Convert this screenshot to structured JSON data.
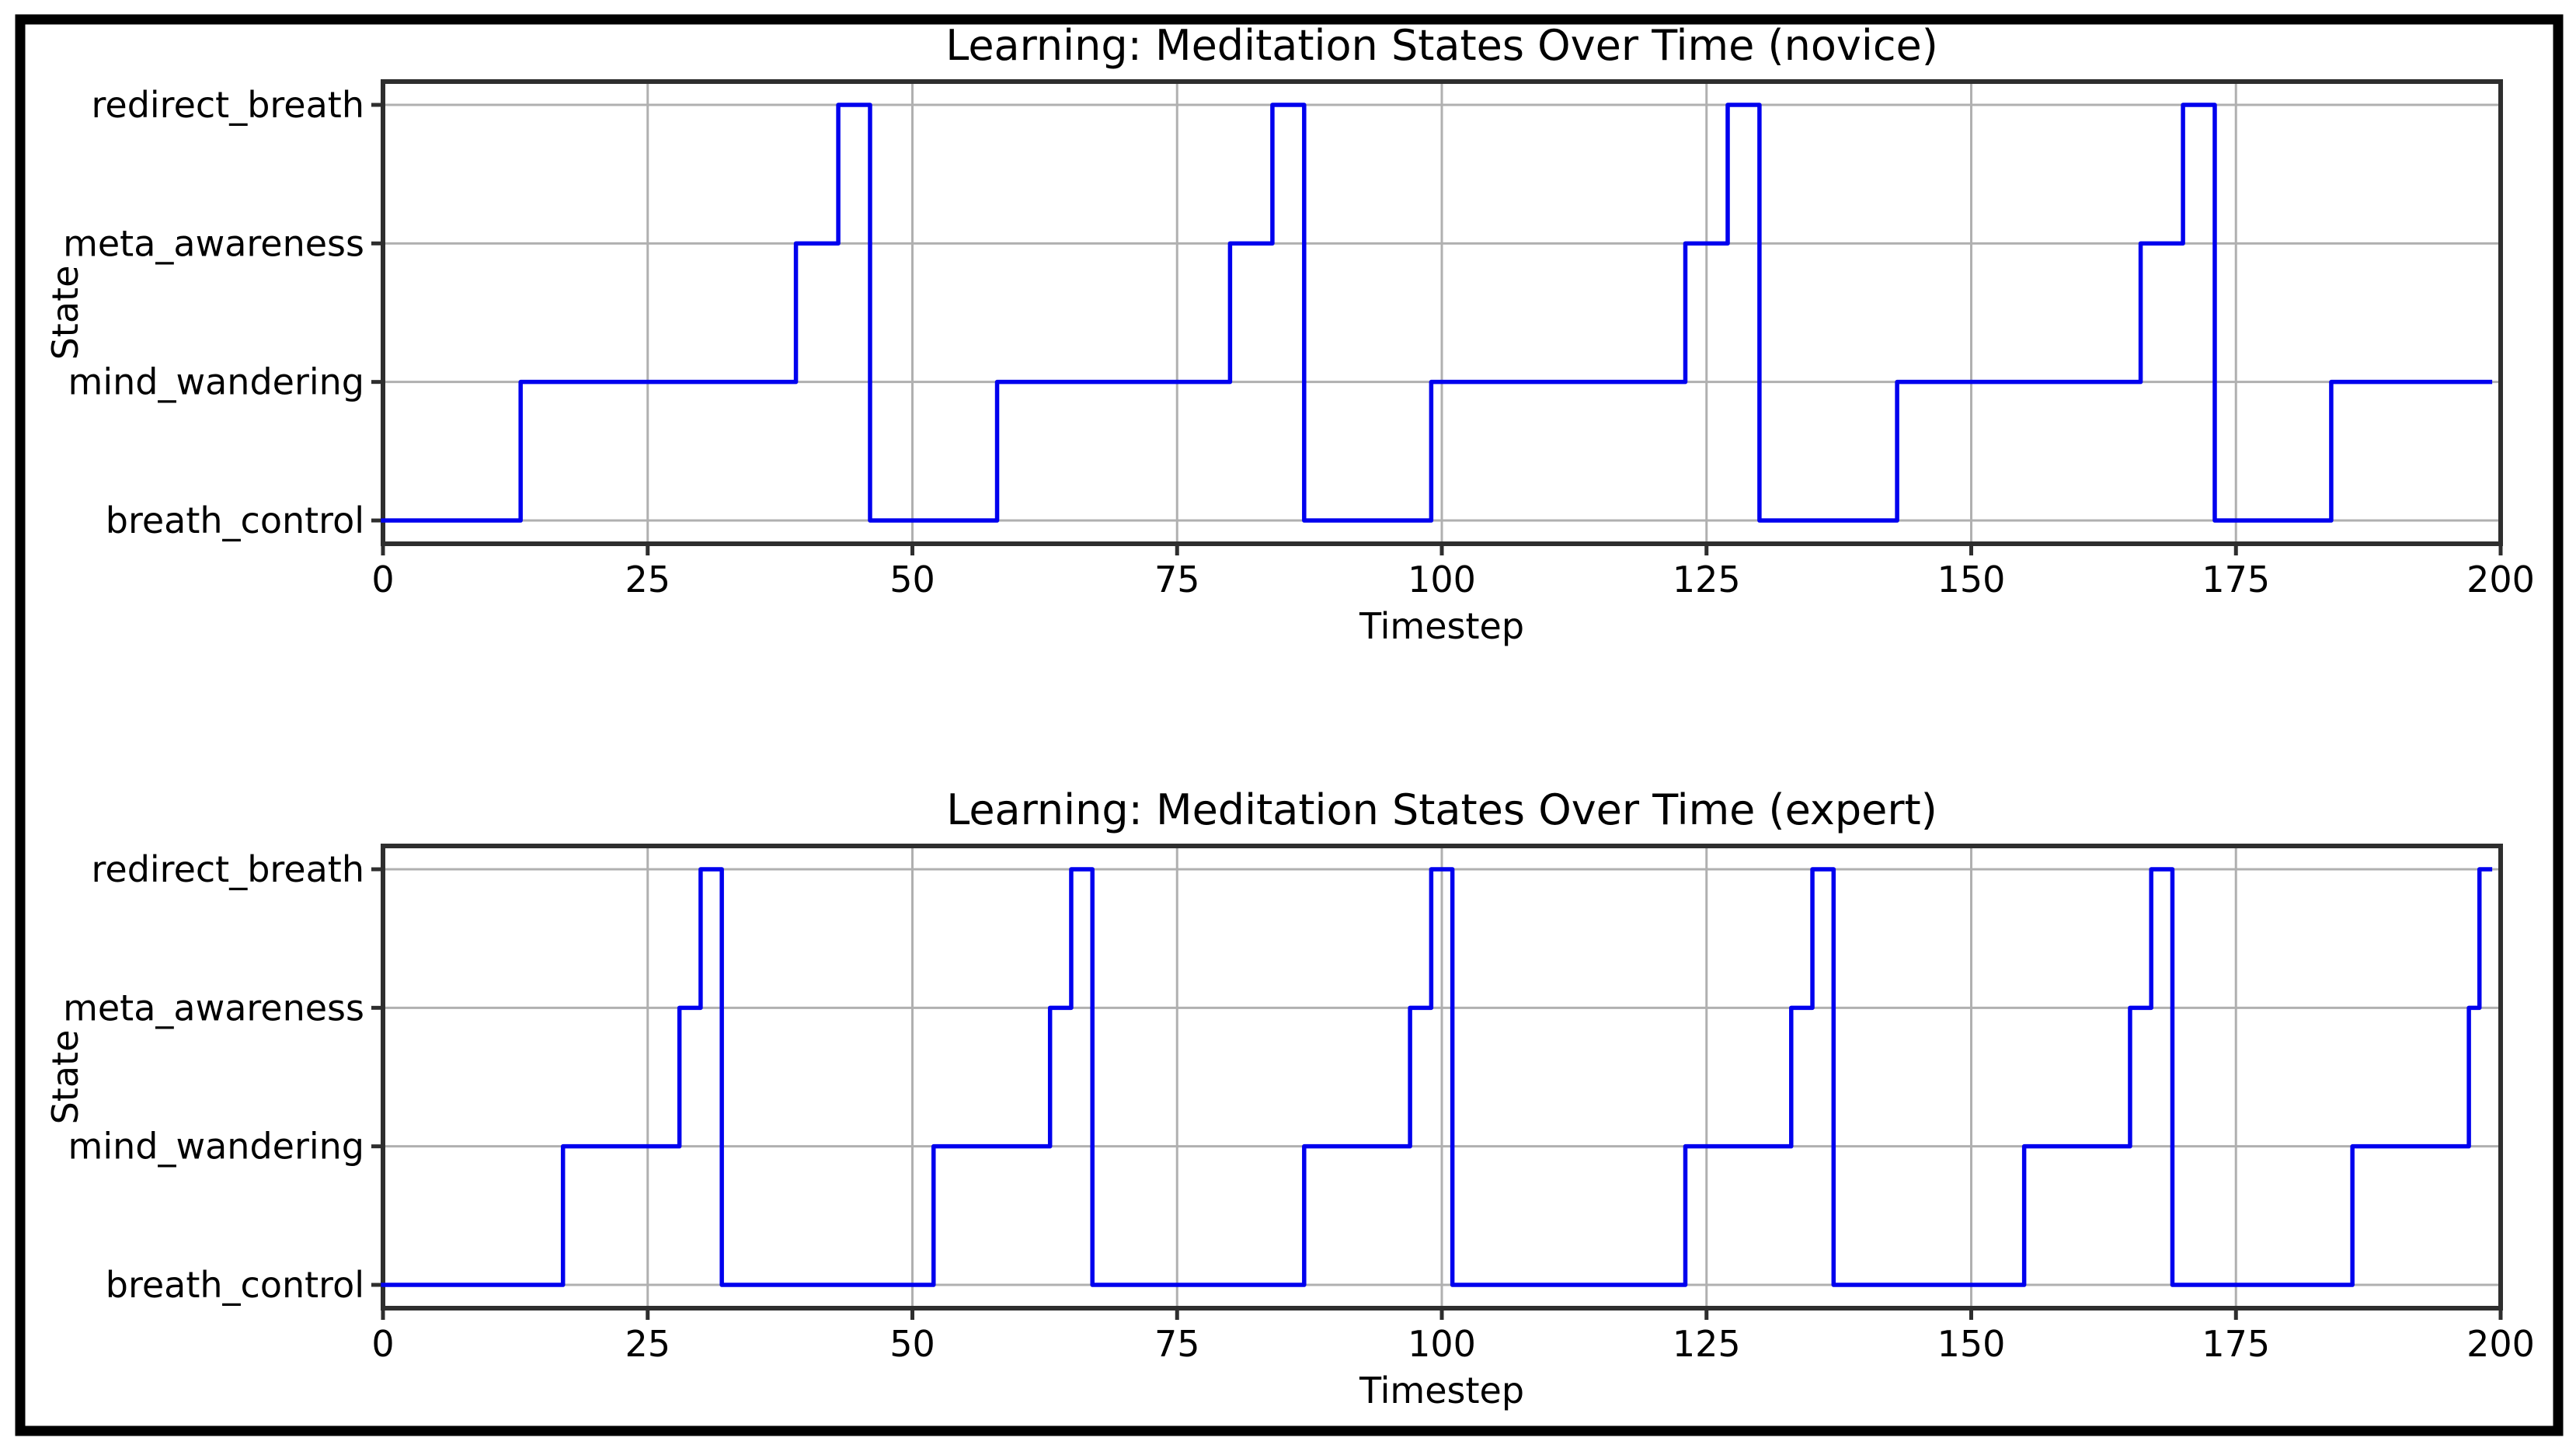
{
  "figure": {
    "frame_color": "#000000",
    "background_color": "#ffffff"
  },
  "colors": {
    "line": "#0000ee",
    "grid": "#b0b0b0",
    "spine": "#2e2e2e",
    "text": "#000000"
  },
  "chart_data": [
    {
      "type": "line",
      "subtype": "step",
      "title": "Learning: Meditation States Over Time (novice)",
      "xlabel": "Timestep",
      "ylabel": "State",
      "xlim": [
        0,
        200
      ],
      "x_ticks": [
        0,
        25,
        50,
        75,
        100,
        125,
        150,
        175,
        200
      ],
      "y_categories": [
        "breath_control",
        "mind_wandering",
        "meta_awareness",
        "redirect_breath"
      ],
      "grid": true,
      "legend": "none",
      "line_color": "#0000ee",
      "segments": [
        {
          "state": "breath_control",
          "from": 0,
          "to": 13
        },
        {
          "state": "mind_wandering",
          "from": 13,
          "to": 39
        },
        {
          "state": "meta_awareness",
          "from": 39,
          "to": 43
        },
        {
          "state": "redirect_breath",
          "from": 43,
          "to": 46
        },
        {
          "state": "breath_control",
          "from": 46,
          "to": 58
        },
        {
          "state": "mind_wandering",
          "from": 58,
          "to": 80
        },
        {
          "state": "meta_awareness",
          "from": 80,
          "to": 84
        },
        {
          "state": "redirect_breath",
          "from": 84,
          "to": 87
        },
        {
          "state": "breath_control",
          "from": 87,
          "to": 99
        },
        {
          "state": "mind_wandering",
          "from": 99,
          "to": 123
        },
        {
          "state": "meta_awareness",
          "from": 123,
          "to": 127
        },
        {
          "state": "redirect_breath",
          "from": 127,
          "to": 130
        },
        {
          "state": "breath_control",
          "from": 130,
          "to": 143
        },
        {
          "state": "mind_wandering",
          "from": 143,
          "to": 166
        },
        {
          "state": "meta_awareness",
          "from": 166,
          "to": 170
        },
        {
          "state": "redirect_breath",
          "from": 170,
          "to": 173
        },
        {
          "state": "breath_control",
          "from": 173,
          "to": 184
        },
        {
          "state": "mind_wandering",
          "from": 184,
          "to": 199
        }
      ]
    },
    {
      "type": "line",
      "subtype": "step",
      "title": "Learning: Meditation States Over Time (expert)",
      "xlabel": "Timestep",
      "ylabel": "State",
      "xlim": [
        0,
        200
      ],
      "x_ticks": [
        0,
        25,
        50,
        75,
        100,
        125,
        150,
        175,
        200
      ],
      "y_categories": [
        "breath_control",
        "mind_wandering",
        "meta_awareness",
        "redirect_breath"
      ],
      "grid": true,
      "legend": "none",
      "line_color": "#0000ee",
      "segments": [
        {
          "state": "breath_control",
          "from": 0,
          "to": 17
        },
        {
          "state": "mind_wandering",
          "from": 17,
          "to": 28
        },
        {
          "state": "meta_awareness",
          "from": 28,
          "to": 30
        },
        {
          "state": "redirect_breath",
          "from": 30,
          "to": 32
        },
        {
          "state": "breath_control",
          "from": 32,
          "to": 52
        },
        {
          "state": "mind_wandering",
          "from": 52,
          "to": 63
        },
        {
          "state": "meta_awareness",
          "from": 63,
          "to": 65
        },
        {
          "state": "redirect_breath",
          "from": 65,
          "to": 67
        },
        {
          "state": "breath_control",
          "from": 67,
          "to": 87
        },
        {
          "state": "mind_wandering",
          "from": 87,
          "to": 97
        },
        {
          "state": "meta_awareness",
          "from": 97,
          "to": 99
        },
        {
          "state": "redirect_breath",
          "from": 99,
          "to": 101
        },
        {
          "state": "breath_control",
          "from": 101,
          "to": 123
        },
        {
          "state": "mind_wandering",
          "from": 123,
          "to": 133
        },
        {
          "state": "meta_awareness",
          "from": 133,
          "to": 135
        },
        {
          "state": "redirect_breath",
          "from": 135,
          "to": 137
        },
        {
          "state": "breath_control",
          "from": 137,
          "to": 155
        },
        {
          "state": "mind_wandering",
          "from": 155,
          "to": 165
        },
        {
          "state": "meta_awareness",
          "from": 165,
          "to": 167
        },
        {
          "state": "redirect_breath",
          "from": 167,
          "to": 169
        },
        {
          "state": "breath_control",
          "from": 169,
          "to": 186
        },
        {
          "state": "mind_wandering",
          "from": 186,
          "to": 197
        },
        {
          "state": "meta_awareness",
          "from": 197,
          "to": 198
        },
        {
          "state": "redirect_breath",
          "from": 198,
          "to": 199
        }
      ]
    }
  ]
}
